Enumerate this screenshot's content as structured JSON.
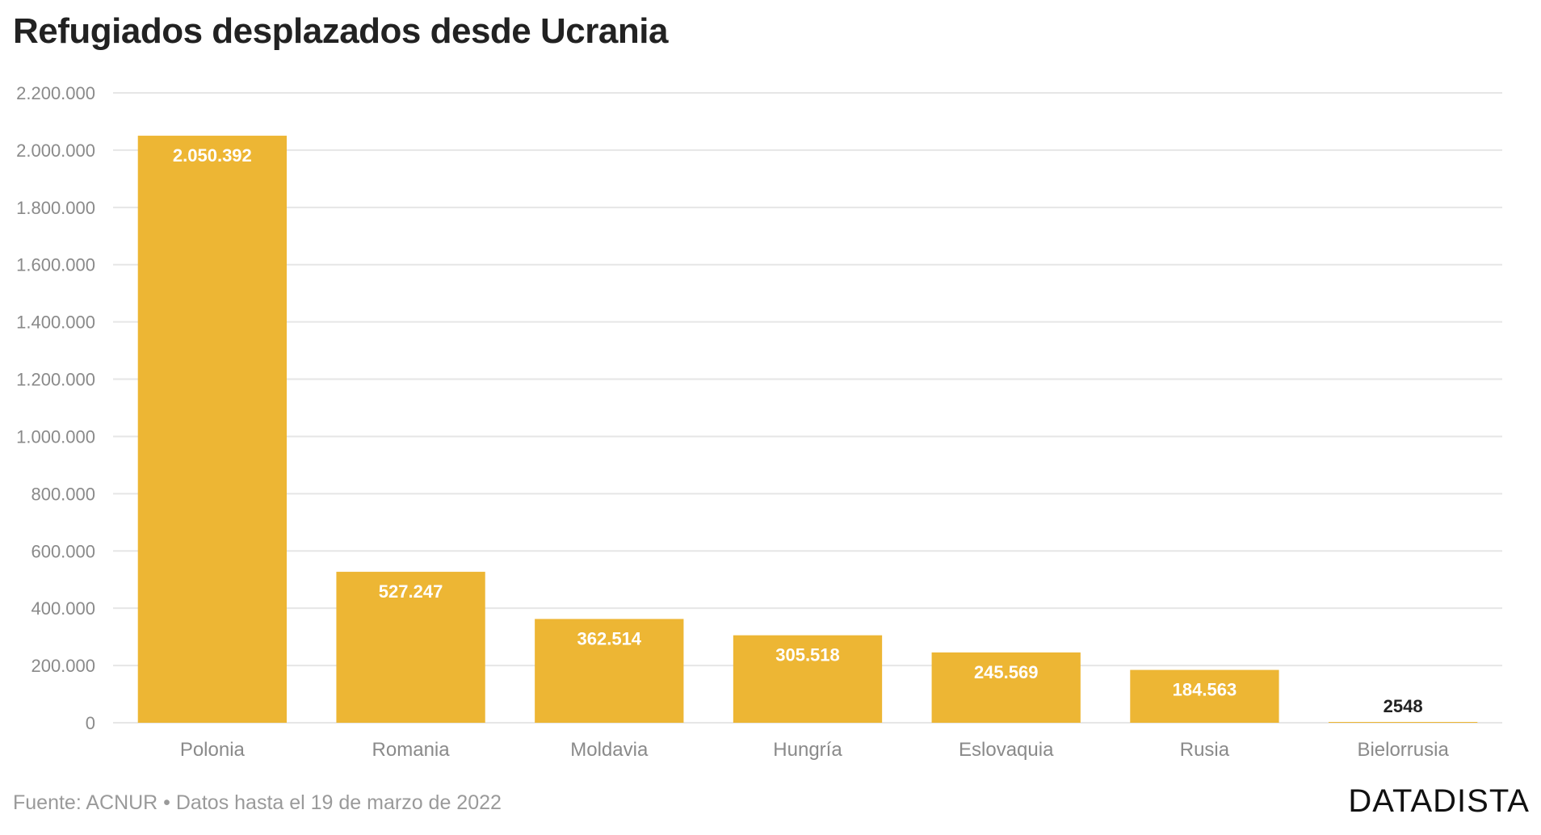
{
  "title": "Refugiados desplazados desde Ucrania",
  "source": "Fuente: ACNUR • Datos hasta el 19 de marzo de 2022",
  "brand": "DATADISTA",
  "colors": {
    "bar": "#edb634",
    "grid": "#e6e6e6",
    "axis_text": "#8a8a8a",
    "label_inside": "#ffffff",
    "label_outside": "#222222"
  },
  "chart_data": {
    "type": "bar",
    "title": "Refugiados desplazados desde Ucrania",
    "xlabel": "",
    "ylabel": "",
    "categories": [
      "Polonia",
      "Romania",
      "Moldavia",
      "Hungría",
      "Eslovaquia",
      "Rusia",
      "Bielorrusia"
    ],
    "values": [
      2050392,
      527247,
      362514,
      305518,
      245569,
      184563,
      2548
    ],
    "value_labels": [
      "2.050.392",
      "527.247",
      "362.514",
      "305.518",
      "245.569",
      "184.563",
      "2548"
    ],
    "ylim": [
      0,
      2200000
    ],
    "yticks": [
      0,
      200000,
      400000,
      600000,
      800000,
      1000000,
      1200000,
      1400000,
      1600000,
      1800000,
      2000000,
      2200000
    ],
    "ytick_labels": [
      "0",
      "200.000",
      "400.000",
      "600.000",
      "800.000",
      "1.000.000",
      "1.200.000",
      "1.400.000",
      "1.600.000",
      "1.800.000",
      "2.000.000",
      "2.200.000"
    ],
    "grid": true,
    "legend": "none"
  }
}
